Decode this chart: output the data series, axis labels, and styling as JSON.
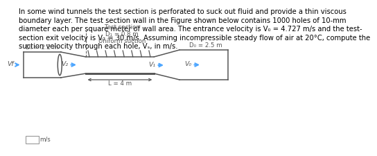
{
  "line1": "In some wind tunnels the test section is perforated to suck out fluid and provide a thin viscous",
  "line2": "boundary layer. The test section wall in the Figure shown below contains 1000 holes of 10-mm",
  "line3": "diameter each per square meter of wall area. The entrance velocity is V₀ = 4.727 m/s and the test-",
  "line4": "section exit velocity is V₂ = 30 m/s. Assuming incompressible steady flow of air at 20°C, compute the",
  "line5": "suction velocity through each hole, Vₛ, in m/s.",
  "answer_box_label": "m/s",
  "label_D1": "Df = 2.2 m",
  "label_D2": "D₁ = 0.8 m",
  "label_D0": "D₀ = 2.5 m",
  "label_ts1": "Test section",
  "label_ts2": "D₁ = 0.8 m",
  "label_ts3": "Uniform suction",
  "label_L": "L = 4 m",
  "bg_color": "#ffffff",
  "text_color": "#000000",
  "arrow_color": "#4da6ff",
  "line_color": "#555555",
  "font_size_text": 7.2,
  "font_size_label": 6.2
}
